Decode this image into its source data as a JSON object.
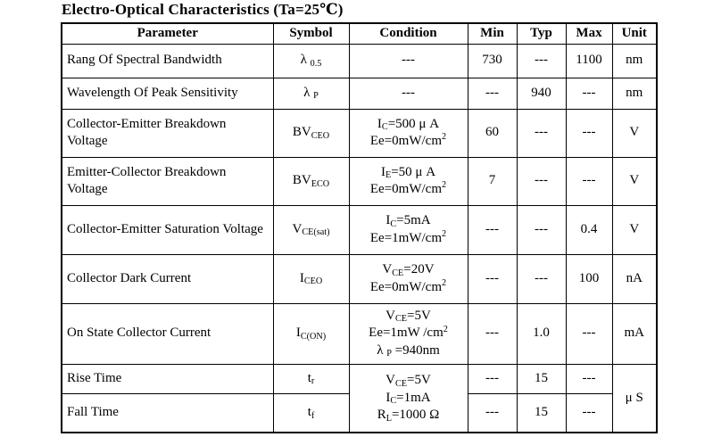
{
  "title": "Electro-Optical Characteristics (Ta=25℃)",
  "table": {
    "headers": [
      "Parameter",
      "Symbol",
      "Condition",
      "Min",
      "Typ",
      "Max",
      "Unit"
    ],
    "rows": [
      {
        "cells": [
          {
            "name": "parameter",
            "text": "Rang Of Spectral Bandwidth"
          },
          {
            "name": "symbol",
            "text": "λ ~0.5~"
          },
          {
            "name": "condition",
            "text": "---"
          },
          {
            "name": "min",
            "text": "730"
          },
          {
            "name": "typ",
            "text": "---"
          },
          {
            "name": "max",
            "text": "1100"
          },
          {
            "name": "unit",
            "text": "nm"
          }
        ]
      },
      {
        "cells": [
          {
            "name": "parameter",
            "text": "Wavelength Of Peak Sensitivity"
          },
          {
            "name": "symbol",
            "text": "λ ~P~"
          },
          {
            "name": "condition",
            "text": "---"
          },
          {
            "name": "min",
            "text": "---"
          },
          {
            "name": "typ",
            "text": "940"
          },
          {
            "name": "max",
            "text": "---"
          },
          {
            "name": "unit",
            "text": "nm"
          }
        ]
      },
      {
        "cells": [
          {
            "name": "parameter",
            "text": "Collector-Emitter Breakdown Voltage"
          },
          {
            "name": "symbol",
            "text": "BV~CEO~"
          },
          {
            "name": "condition",
            "text": "I~C~=500 μ A\nEe=0mW/cm^2^"
          },
          {
            "name": "min",
            "text": "60"
          },
          {
            "name": "typ",
            "text": "---"
          },
          {
            "name": "max",
            "text": "---"
          },
          {
            "name": "unit",
            "text": "V"
          }
        ]
      },
      {
        "cells": [
          {
            "name": "parameter",
            "text": "Emitter-Collector Breakdown Voltage"
          },
          {
            "name": "symbol",
            "text": "BV~ECO~"
          },
          {
            "name": "condition",
            "text": "I~E~=50 μ A\nEe=0mW/cm^2^"
          },
          {
            "name": "min",
            "text": "7"
          },
          {
            "name": "typ",
            "text": "---"
          },
          {
            "name": "max",
            "text": "---"
          },
          {
            "name": "unit",
            "text": "V"
          }
        ]
      },
      {
        "cells": [
          {
            "name": "parameter",
            "text": "Collector-Emitter Saturation Voltage"
          },
          {
            "name": "symbol",
            "text": "V~CE(sat)~"
          },
          {
            "name": "condition",
            "text": "I~C~=5mA\nEe=1mW/cm^2^"
          },
          {
            "name": "min",
            "text": "---"
          },
          {
            "name": "typ",
            "text": "---"
          },
          {
            "name": "max",
            "text": "0.4"
          },
          {
            "name": "unit",
            "text": "V"
          }
        ]
      },
      {
        "cells": [
          {
            "name": "parameter",
            "text": "Collector Dark Current"
          },
          {
            "name": "symbol",
            "text": "I~CEO~"
          },
          {
            "name": "condition",
            "text": "V~CE~=20V\nEe=0mW/cm^2^"
          },
          {
            "name": "min",
            "text": "---"
          },
          {
            "name": "typ",
            "text": "---"
          },
          {
            "name": "max",
            "text": "100"
          },
          {
            "name": "unit",
            "text": "nA"
          }
        ]
      },
      {
        "cells": [
          {
            "name": "parameter",
            "text": "On State Collector Current"
          },
          {
            "name": "symbol",
            "text": "I~C(ON)~"
          },
          {
            "name": "condition",
            "text": "V~CE~=5V\nEe=1mW /cm^2^\nλ ~P~ =940nm"
          },
          {
            "name": "min",
            "text": "---"
          },
          {
            "name": "typ",
            "text": "1.0"
          },
          {
            "name": "max",
            "text": "---"
          },
          {
            "name": "unit",
            "text": "mA"
          }
        ]
      },
      {
        "cells": [
          {
            "name": "parameter",
            "text": "Rise Time"
          },
          {
            "name": "symbol",
            "text": "t~r~"
          },
          {
            "name": "condition",
            "text": "V~CE~=5V\nI~C~=1mA\nR~L~=1000 Ω",
            "rowspan": 2
          },
          {
            "name": "min",
            "text": "---"
          },
          {
            "name": "typ",
            "text": "15"
          },
          {
            "name": "max",
            "text": "---"
          },
          {
            "name": "unit",
            "text": "μ S",
            "rowspan": 2
          }
        ]
      },
      {
        "cells": [
          {
            "name": "parameter",
            "text": "Fall Time"
          },
          {
            "name": "symbol",
            "text": "t~f~"
          },
          {
            "name": "min",
            "text": "---"
          },
          {
            "name": "typ",
            "text": "15"
          },
          {
            "name": "max",
            "text": "---"
          }
        ]
      }
    ]
  }
}
